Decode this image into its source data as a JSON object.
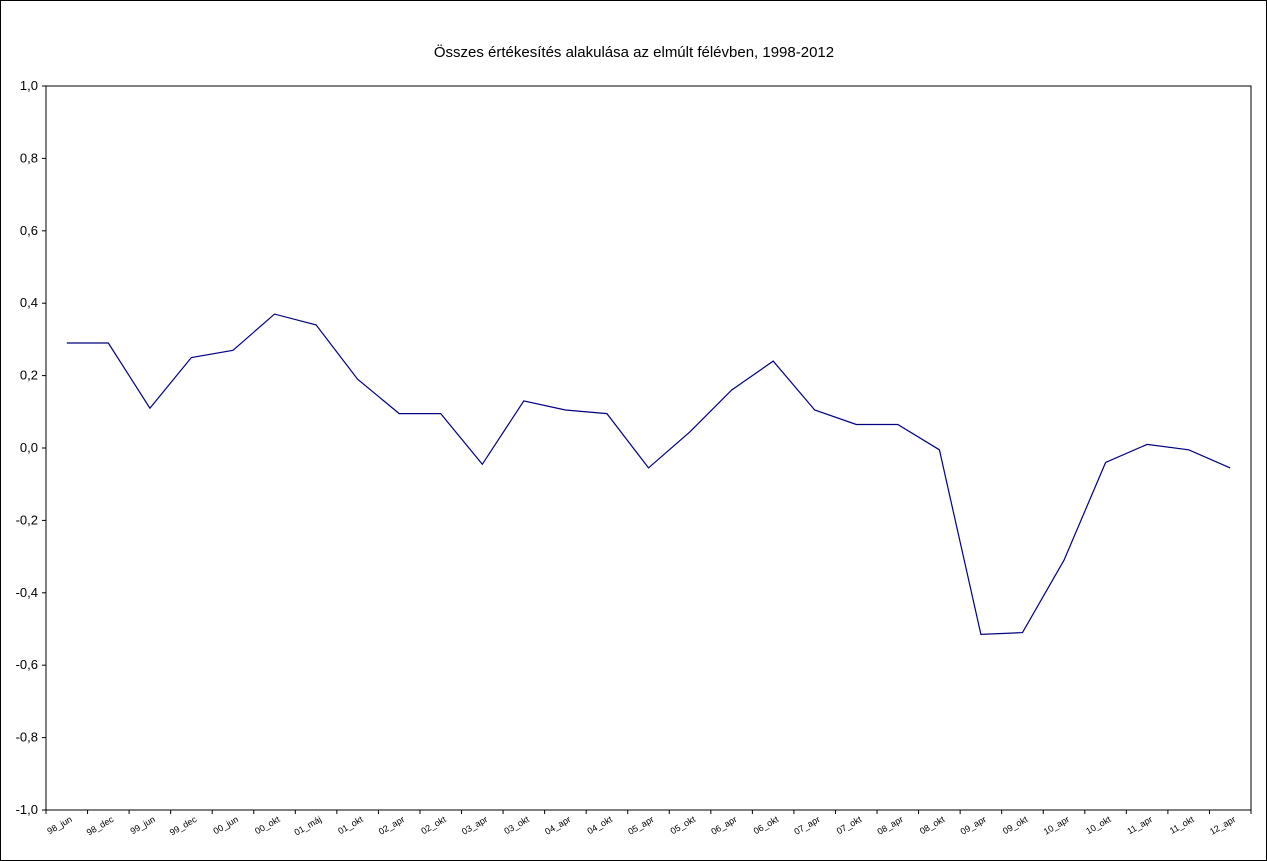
{
  "chart_data": {
    "type": "line",
    "title": "Összes értékesítés alakulása az elmúlt félévben, 1998-2012",
    "xlabel": "",
    "ylabel": "",
    "ylim": [
      -1.0,
      1.0
    ],
    "yticks": [
      1.0,
      0.8,
      0.6,
      0.4,
      0.2,
      0.0,
      -0.2,
      -0.4,
      -0.6,
      -0.8,
      -1.0
    ],
    "ytick_labels": [
      "1,0",
      "0,8",
      "0,6",
      "0,4",
      "0,2",
      "0,0",
      "-0,2",
      "-0,4",
      "-0,6",
      "-0,8",
      "-1,0"
    ],
    "grid": false,
    "legend": "none",
    "categories": [
      "98_jun",
      "98_dec",
      "99_jun",
      "99_dec",
      "00_jun",
      "00_okt",
      "01_máj",
      "01_okt",
      "02_apr",
      "02_okt",
      "03_apr",
      "03_okt",
      "04_apr",
      "04_okt",
      "05_apr",
      "05_okt",
      "06_apr",
      "06_okt",
      "07_apr",
      "07_okt",
      "08_apr",
      "08_okt",
      "09_apr",
      "09_okt",
      "10_apr",
      "10_okt",
      "11_apr",
      "11_okt",
      "12_apr"
    ],
    "series": [
      {
        "values": [
          0.29,
          0.29,
          0.11,
          0.25,
          0.27,
          0.37,
          0.34,
          0.19,
          0.095,
          0.095,
          -0.045,
          0.13,
          0.105,
          0.095,
          -0.055,
          0.045,
          0.16,
          0.24,
          0.105,
          0.065,
          0.065,
          -0.005,
          -0.515,
          -0.51,
          -0.31,
          -0.04,
          0.01,
          -0.005,
          -0.055
        ],
        "color": "#000080"
      }
    ]
  }
}
